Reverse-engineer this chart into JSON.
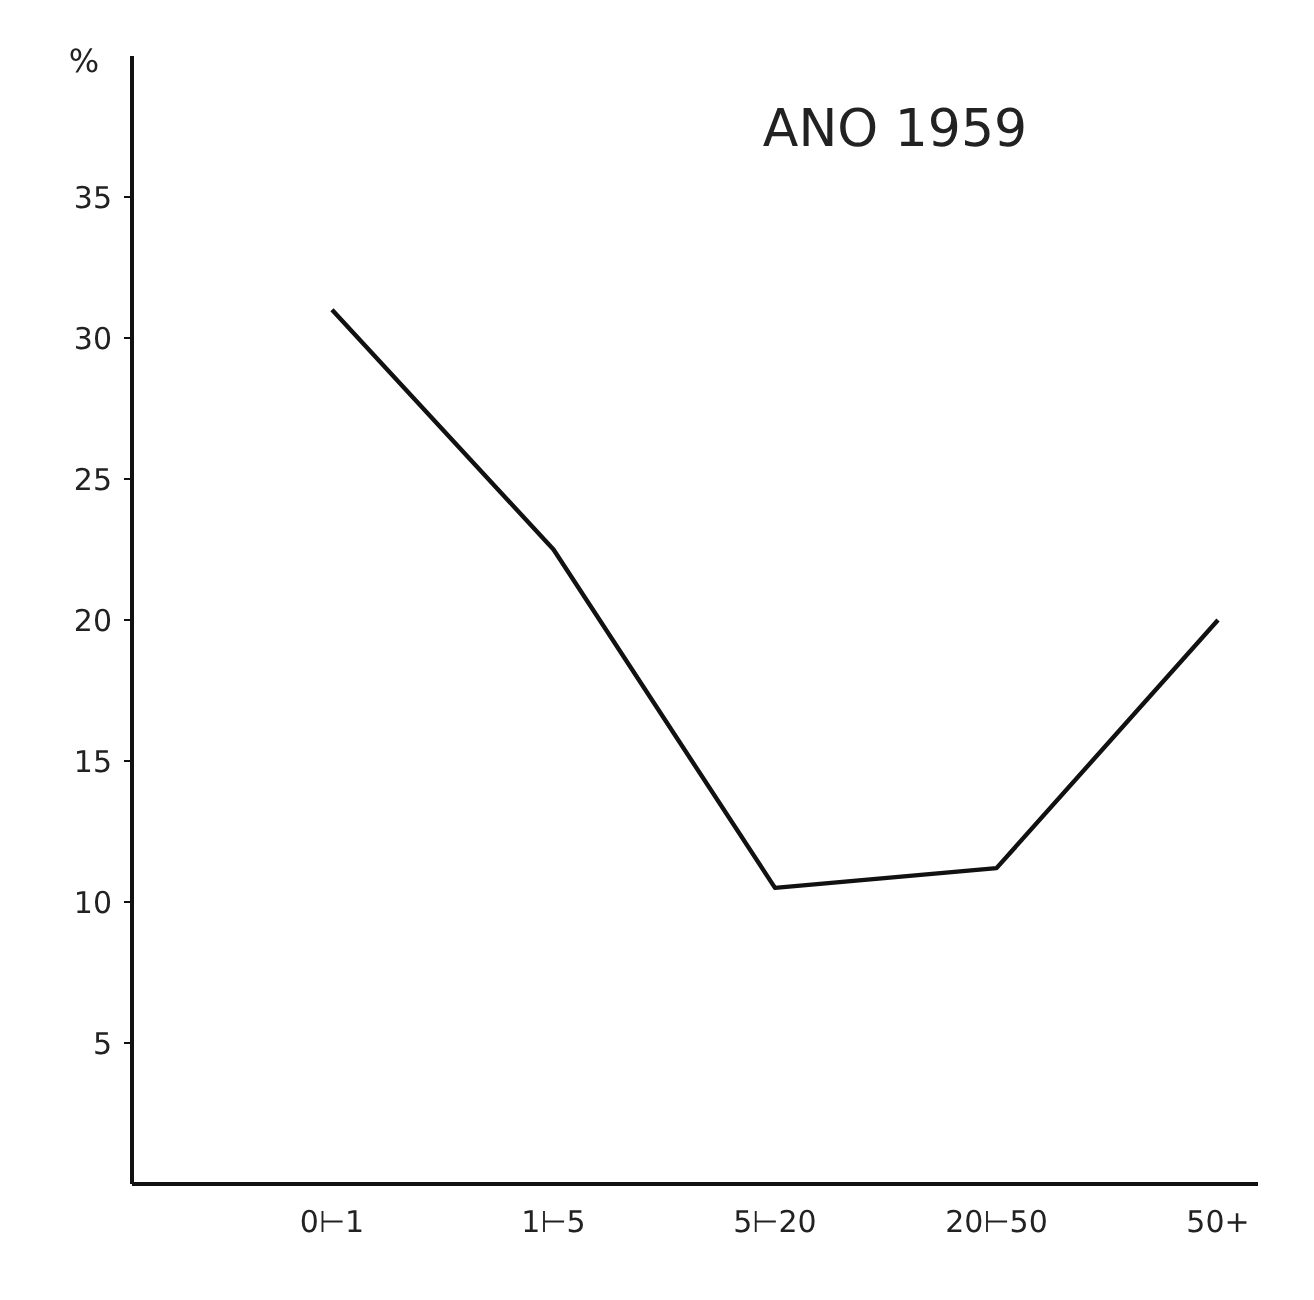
{
  "chart_data": {
    "type": "line",
    "title": "ANO 1959",
    "ylabel": "%",
    "categories": [
      "0⊢1",
      "1⊢5",
      "5⊢20",
      "20⊢50",
      "50+"
    ],
    "series": [
      {
        "color": "#111111",
        "values": [
          31,
          22.5,
          10.5,
          11.2,
          20
        ]
      }
    ],
    "ylim": [
      0,
      40
    ],
    "yticks": [
      5,
      10,
      15,
      20,
      25,
      30,
      35
    ],
    "grid": false,
    "marker": "none",
    "line_style": "solid"
  }
}
